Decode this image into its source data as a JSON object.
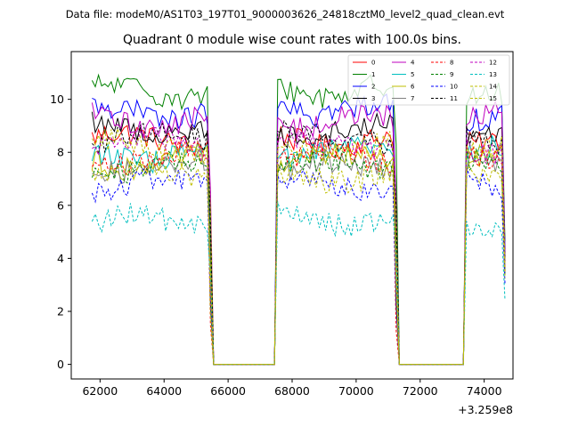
{
  "suptitle": "Data file: modeM0/AS1T03_197T01_9000003626_24818cztM0_level2_quad_clean.evt",
  "chart_data": {
    "type": "line",
    "title": "Quadrant 0 module wise count rates with 100.0s bins.",
    "xlabel": "",
    "ylabel": "",
    "x_offset_label": "+3.259e8",
    "xlim": [
      61100,
      74900
    ],
    "ylim": [
      -0.55,
      11.8
    ],
    "x_ticks": [
      62000,
      64000,
      66000,
      68000,
      70000,
      72000,
      74000
    ],
    "x_tick_labels": [
      "62000",
      "64000",
      "66000",
      "68000",
      "70000",
      "72000",
      "74000"
    ],
    "y_ticks": [
      0,
      2,
      4,
      6,
      8,
      10
    ],
    "y_tick_labels": [
      "0",
      "2",
      "4",
      "6",
      "8",
      "10"
    ],
    "legend_position": "top-right",
    "segments": [
      {
        "start": 61750,
        "end": 65450
      },
      {
        "start": 67550,
        "end": 71250
      },
      {
        "start": 73450,
        "end": 74650
      }
    ],
    "gaps": [
      {
        "start": 65550,
        "end": 67450
      },
      {
        "start": 71350,
        "end": 73350
      }
    ],
    "series": [
      {
        "name": "0",
        "color": "#ff0000",
        "dash": "solid",
        "mean": 8.5
      },
      {
        "name": "1",
        "color": "#008000",
        "dash": "solid",
        "mean": 10.3
      },
      {
        "name": "2",
        "color": "#0000ff",
        "dash": "solid",
        "mean": 9.5
      },
      {
        "name": "3",
        "color": "#000000",
        "dash": "solid",
        "mean": 8.9
      },
      {
        "name": "4",
        "color": "#bf00bf",
        "dash": "solid",
        "mean": 9.2
      },
      {
        "name": "5",
        "color": "#00bfbf",
        "dash": "solid",
        "mean": 7.9
      },
      {
        "name": "6",
        "color": "#bfbf00",
        "dash": "solid",
        "mean": 7.6
      },
      {
        "name": "7",
        "color": "#808080",
        "dash": "solid",
        "mean": 7.5
      },
      {
        "name": "8",
        "color": "#ff0000",
        "dash": "dashed",
        "mean": 7.8
      },
      {
        "name": "9",
        "color": "#008000",
        "dash": "dashed",
        "mean": 7.4
      },
      {
        "name": "10",
        "color": "#0000ff",
        "dash": "dashed",
        "mean": 6.8
      },
      {
        "name": "11",
        "color": "#000000",
        "dash": "dashed",
        "mean": 8.6
      },
      {
        "name": "12",
        "color": "#bf00bf",
        "dash": "dashed",
        "mean": 8.3
      },
      {
        "name": "13",
        "color": "#00bfbf",
        "dash": "dashed",
        "mean": 5.4
      },
      {
        "name": "14",
        "color": "#bfbf00",
        "dash": "dashed",
        "mean": 7.2
      },
      {
        "name": "15",
        "color": "#bfbf00",
        "dash": "dashed",
        "mean": 8.2
      }
    ]
  }
}
